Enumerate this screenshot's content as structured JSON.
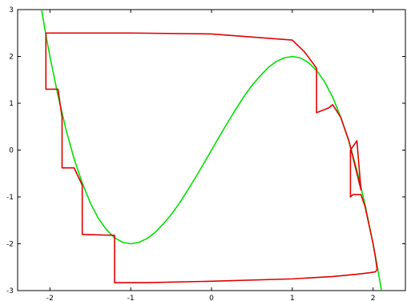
{
  "chart_data": {
    "type": "line",
    "title": "",
    "xlabel": "",
    "ylabel": "",
    "xlim": [
      -2.4,
      2.4
    ],
    "ylim": [
      -3,
      3
    ],
    "grid": false,
    "x_ticks": [
      "-2",
      "-1",
      "0",
      "1",
      "2"
    ],
    "y_ticks": [
      "-3",
      "-2",
      "-1",
      "0",
      "1",
      "2",
      "3"
    ],
    "colors": {
      "curve": "#00e000",
      "trajectory": "#e00000",
      "axes": "#000000"
    },
    "series": [
      {
        "curve_equation": "y = 3x - x^3",
        "color": "#00e000",
        "x": [
          -2.15,
          -2.1,
          -2.05,
          -2.0,
          -1.9,
          -1.8,
          -1.7,
          -1.6,
          -1.5,
          -1.4,
          -1.3,
          -1.2,
          -1.1,
          -1.0,
          -0.9,
          -0.8,
          -0.7,
          -0.6,
          -0.5,
          -0.4,
          -0.3,
          -0.2,
          -0.1,
          0.0,
          0.1,
          0.2,
          0.3,
          0.4,
          0.5,
          0.6,
          0.7,
          0.8,
          0.9,
          1.0,
          1.1,
          1.2,
          1.3,
          1.4,
          1.5,
          1.6,
          1.7,
          1.8,
          1.9,
          2.0,
          2.05,
          2.1,
          2.14
        ],
        "y": [
          3.49,
          2.96,
          2.46,
          2.0,
          1.16,
          0.43,
          -0.19,
          -0.7,
          -1.13,
          -1.46,
          -1.7,
          -1.87,
          -1.97,
          -2.0,
          -1.97,
          -1.89,
          -1.76,
          -1.58,
          -1.38,
          -1.14,
          -0.87,
          -0.59,
          -0.3,
          0.0,
          0.3,
          0.59,
          0.87,
          1.14,
          1.38,
          1.58,
          1.76,
          1.89,
          1.97,
          2.0,
          1.97,
          1.87,
          1.7,
          1.46,
          1.13,
          0.7,
          0.19,
          -0.43,
          -1.16,
          -2.0,
          -2.46,
          -2.96,
          -3.38
        ]
      },
      {
        "color": "#e00000",
        "x": [
          -2.05,
          -2.05,
          -1.9,
          -1.85,
          -1.85,
          -1.7,
          -1.6,
          -1.6,
          -1.2,
          -1.2,
          -0.8,
          0.0,
          1.0,
          1.5,
          1.8,
          1.95,
          2.03,
          2.05,
          2.03,
          2.0,
          1.9,
          1.85,
          1.75,
          1.72,
          1.72,
          1.8,
          1.85,
          1.7,
          1.6,
          1.5,
          1.45,
          1.3,
          1.3,
          1.15,
          1.0,
          0.0,
          -1.0,
          -2.05
        ],
        "y": [
          2.5,
          1.3,
          1.3,
          0.7,
          -0.38,
          -0.38,
          -0.75,
          -1.8,
          -1.82,
          -2.83,
          -2.83,
          -2.8,
          -2.75,
          -2.7,
          -2.65,
          -2.62,
          -2.6,
          -2.55,
          -2.3,
          -2.0,
          -1.2,
          -0.95,
          -0.95,
          -1.0,
          0.0,
          0.2,
          -0.85,
          0.2,
          0.7,
          0.97,
          0.9,
          0.8,
          1.75,
          2.1,
          2.35,
          2.48,
          2.5,
          2.5
        ]
      }
    ]
  }
}
